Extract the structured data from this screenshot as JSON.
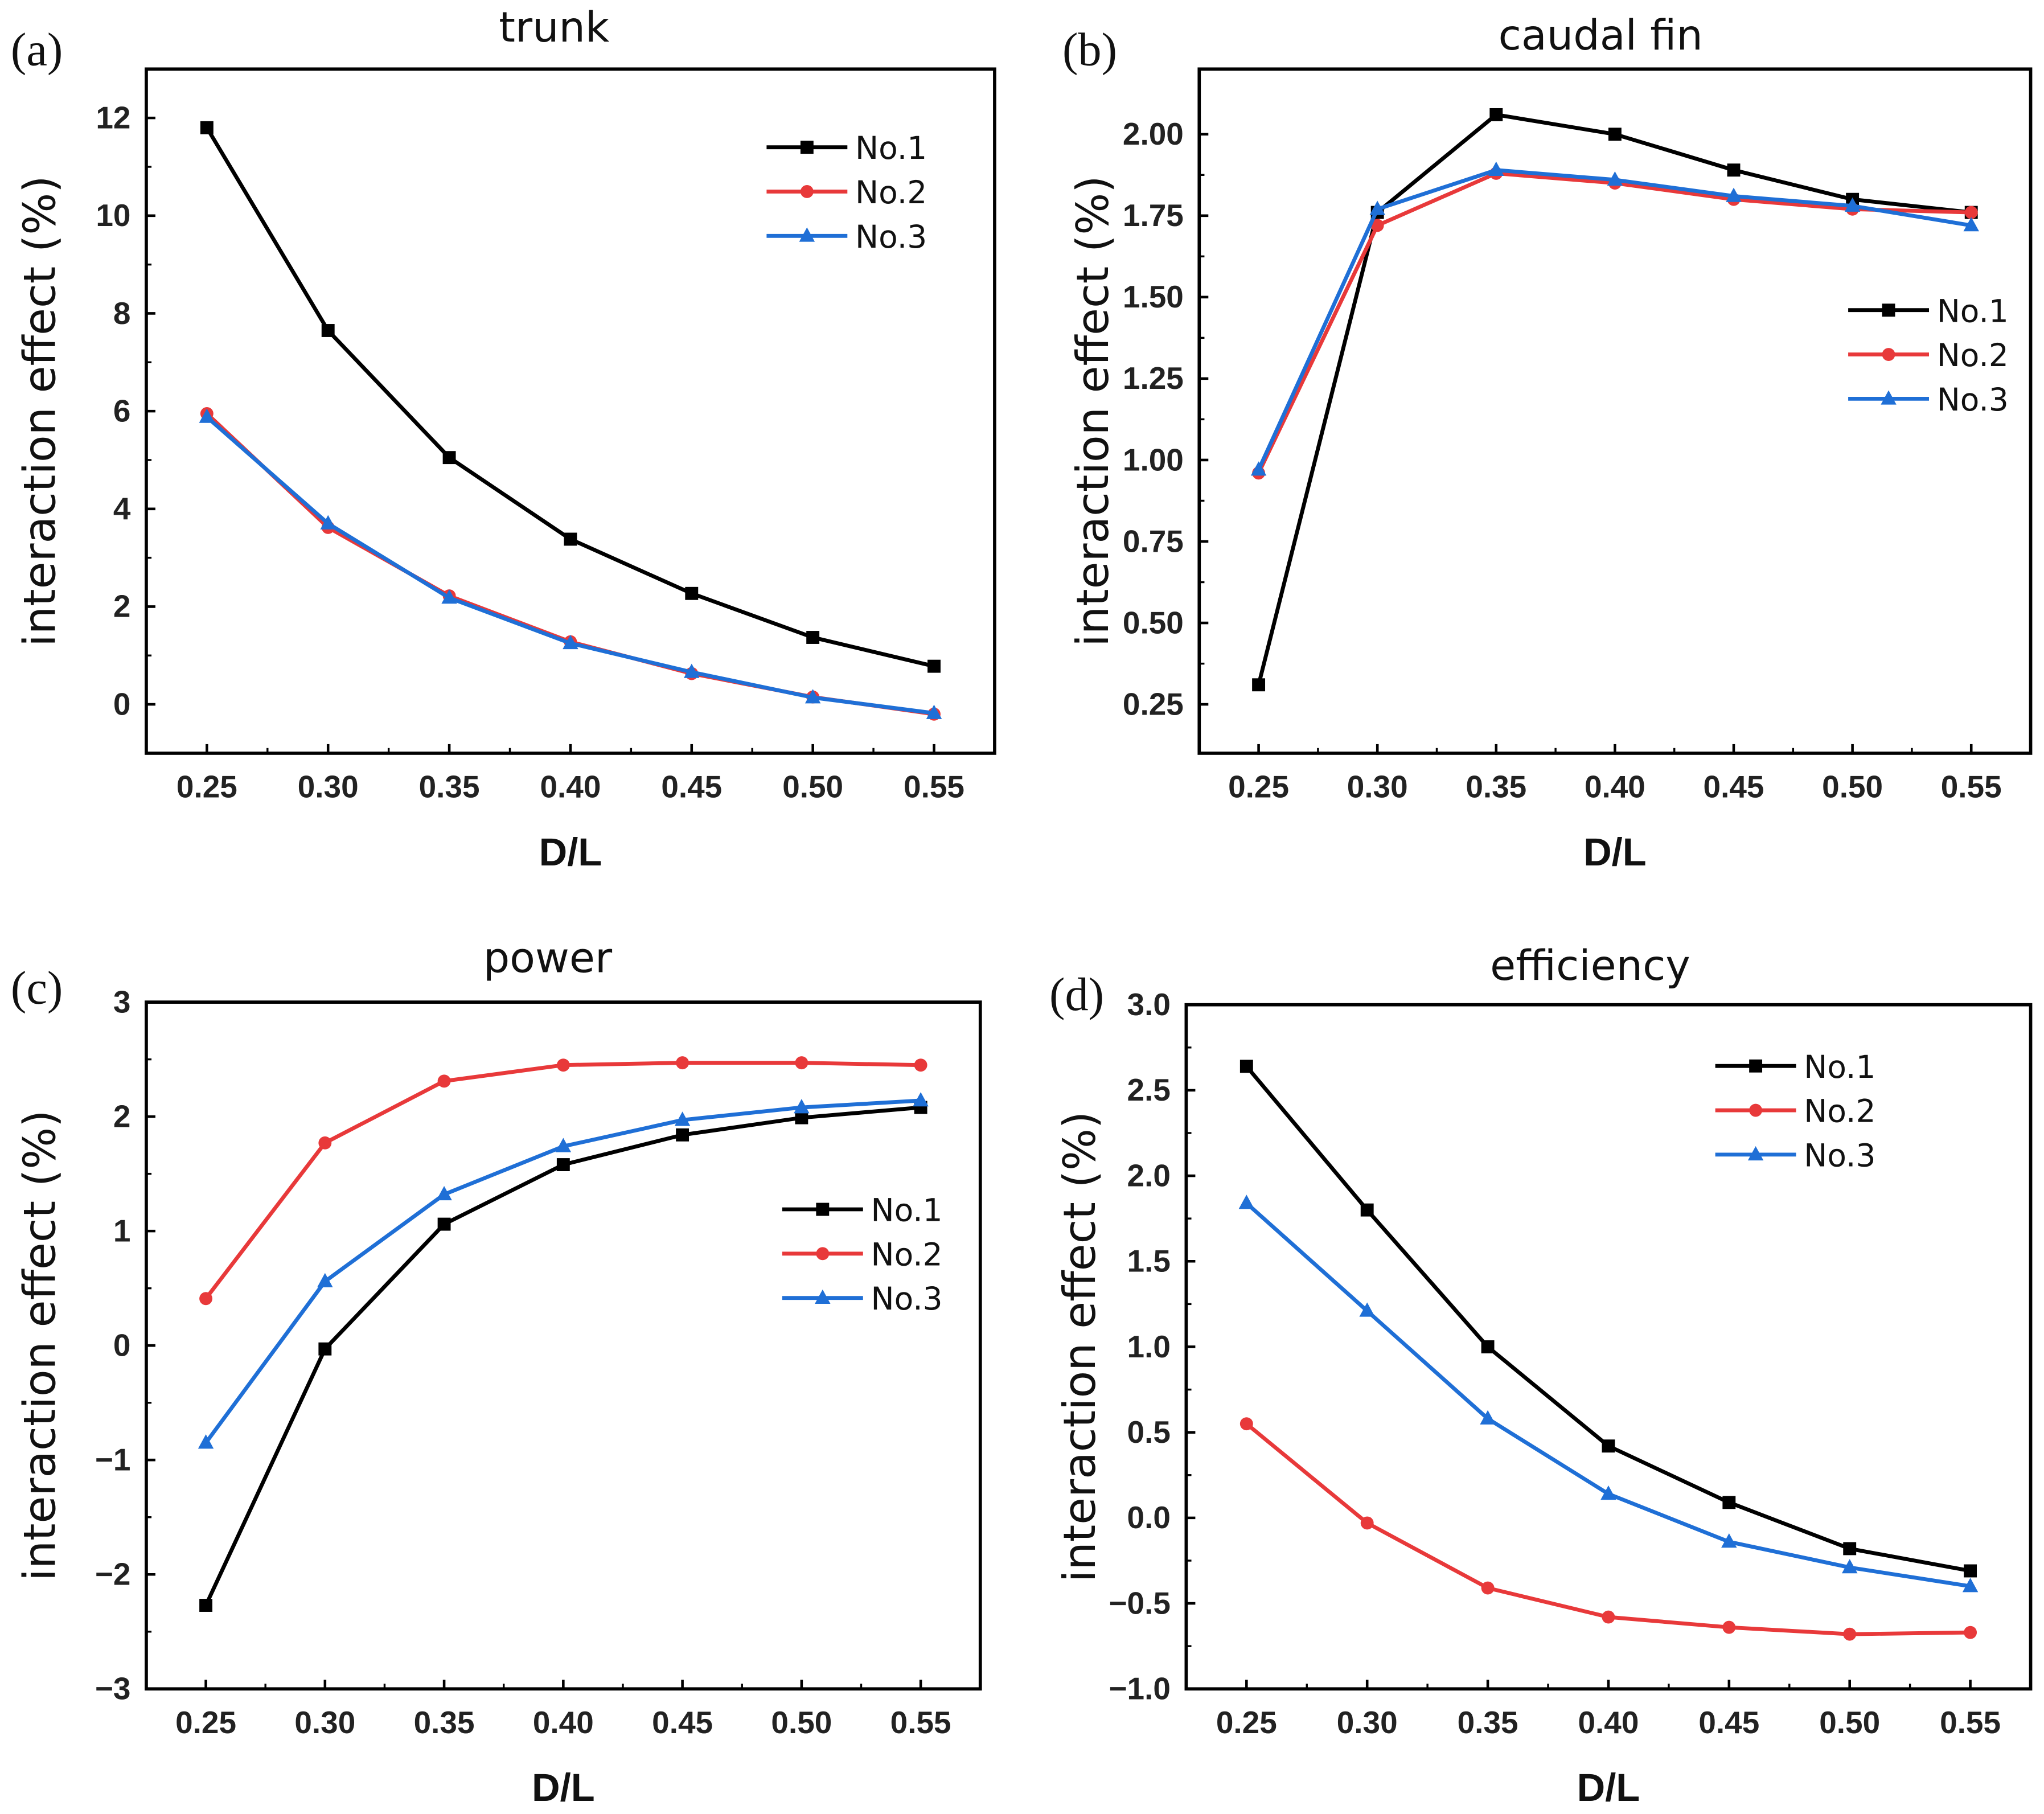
{
  "chart_data": [
    {
      "type": "line",
      "panel_label": "(a)",
      "title": "trunk",
      "xlabel": "D/L",
      "ylabel": "interaction effect   (%)",
      "x": [
        0.25,
        0.3,
        0.35,
        0.4,
        0.45,
        0.5,
        0.55
      ],
      "xticks": [
        "0.25",
        "0.30",
        "0.35",
        "0.40",
        "0.45",
        "0.50",
        "0.55"
      ],
      "xlim": [
        0.225,
        0.575
      ],
      "yticks": [
        0,
        2,
        4,
        6,
        8,
        10,
        12
      ],
      "ytick_labels": [
        "0",
        "2",
        "4",
        "6",
        "8",
        "10",
        "12"
      ],
      "ylim": [
        -1,
        13
      ],
      "legend": "top-right",
      "series": [
        {
          "name": "No.1",
          "color": "#000000",
          "marker": "square",
          "values": [
            11.8,
            7.65,
            5.05,
            3.38,
            2.27,
            1.37,
            0.78
          ]
        },
        {
          "name": "No.2",
          "color": "#e8393a",
          "marker": "circle",
          "values": [
            5.95,
            3.62,
            2.22,
            1.28,
            0.63,
            0.15,
            -0.2
          ]
        },
        {
          "name": "No.3",
          "color": "#1f6fd6",
          "marker": "triangle",
          "values": [
            5.88,
            3.7,
            2.18,
            1.25,
            0.66,
            0.14,
            -0.18
          ]
        }
      ]
    },
    {
      "type": "line",
      "panel_label": "(b)",
      "title": "caudal fin",
      "xlabel": "D/L",
      "ylabel": "interaction effect   (%)",
      "x": [
        0.25,
        0.3,
        0.35,
        0.4,
        0.45,
        0.5,
        0.55
      ],
      "xticks": [
        "0.25",
        "0.30",
        "0.35",
        "0.40",
        "0.45",
        "0.50",
        "0.55"
      ],
      "xlim": [
        0.225,
        0.575
      ],
      "yticks": [
        0.25,
        0.5,
        0.75,
        1.0,
        1.25,
        1.5,
        1.75,
        2.0
      ],
      "ytick_labels": [
        "0.25",
        "0.50",
        "0.75",
        "1.00",
        "1.25",
        "1.50",
        "1.75",
        "2.00"
      ],
      "ylim": [
        0.1,
        2.2
      ],
      "legend": "right",
      "series": [
        {
          "name": "No.1",
          "color": "#000000",
          "marker": "square",
          "values": [
            0.31,
            1.76,
            2.06,
            2.0,
            1.89,
            1.8,
            1.76
          ]
        },
        {
          "name": "No.2",
          "color": "#e8393a",
          "marker": "circle",
          "values": [
            0.96,
            1.72,
            1.88,
            1.85,
            1.8,
            1.77,
            1.76
          ]
        },
        {
          "name": "No.3",
          "color": "#1f6fd6",
          "marker": "triangle",
          "values": [
            0.97,
            1.77,
            1.89,
            1.86,
            1.81,
            1.78,
            1.72
          ]
        }
      ]
    },
    {
      "type": "line",
      "panel_label": "(c)",
      "title": "power",
      "xlabel": "D/L",
      "ylabel": "interaction effect   (%)",
      "x": [
        0.25,
        0.3,
        0.35,
        0.4,
        0.45,
        0.5,
        0.55
      ],
      "xticks": [
        "0.25",
        "0.30",
        "0.35",
        "0.40",
        "0.45",
        "0.50",
        "0.55"
      ],
      "xlim": [
        0.225,
        0.575
      ],
      "yticks": [
        -3,
        -2,
        -1,
        0,
        1,
        2,
        3
      ],
      "ytick_labels": [
        "−3",
        "−2",
        "−1",
        "0",
        "1",
        "2",
        "3"
      ],
      "ylim": [
        -3,
        3
      ],
      "legend": "center-right",
      "series": [
        {
          "name": "No.1",
          "color": "#000000",
          "marker": "square",
          "values": [
            -2.27,
            -0.03,
            1.06,
            1.58,
            1.84,
            1.99,
            2.08
          ]
        },
        {
          "name": "No.2",
          "color": "#e8393a",
          "marker": "circle",
          "values": [
            0.41,
            1.77,
            2.31,
            2.45,
            2.47,
            2.47,
            2.45
          ]
        },
        {
          "name": "No.3",
          "color": "#1f6fd6",
          "marker": "triangle",
          "values": [
            -0.85,
            0.56,
            1.32,
            1.74,
            1.97,
            2.08,
            2.14
          ]
        }
      ]
    },
    {
      "type": "line",
      "panel_label": "(d)",
      "title": "efficiency",
      "xlabel": "D/L",
      "ylabel": "interaction effect   (%)",
      "x": [
        0.25,
        0.3,
        0.35,
        0.4,
        0.45,
        0.5,
        0.55
      ],
      "xticks": [
        "0.25",
        "0.30",
        "0.35",
        "0.40",
        "0.45",
        "0.50",
        "0.55"
      ],
      "xlim": [
        0.225,
        0.575
      ],
      "yticks": [
        -1.0,
        -0.5,
        0.0,
        0.5,
        1.0,
        1.5,
        2.0,
        2.5,
        3.0
      ],
      "ytick_labels": [
        "−1.0",
        "−0.5",
        "0.0",
        "0.5",
        "1.0",
        "1.5",
        "2.0",
        "2.5",
        "3.0"
      ],
      "ylim": [
        -1,
        3
      ],
      "legend": "top-center",
      "series": [
        {
          "name": "No.1",
          "color": "#000000",
          "marker": "square",
          "values": [
            2.64,
            1.8,
            1.0,
            0.42,
            0.09,
            -0.18,
            -0.31
          ]
        },
        {
          "name": "No.2",
          "color": "#e8393a",
          "marker": "circle",
          "values": [
            0.55,
            -0.03,
            -0.41,
            -0.58,
            -0.64,
            -0.68,
            -0.67
          ]
        },
        {
          "name": "No.3",
          "color": "#1f6fd6",
          "marker": "triangle",
          "values": [
            1.84,
            1.21,
            0.58,
            0.14,
            -0.14,
            -0.29,
            -0.4
          ]
        }
      ]
    }
  ]
}
